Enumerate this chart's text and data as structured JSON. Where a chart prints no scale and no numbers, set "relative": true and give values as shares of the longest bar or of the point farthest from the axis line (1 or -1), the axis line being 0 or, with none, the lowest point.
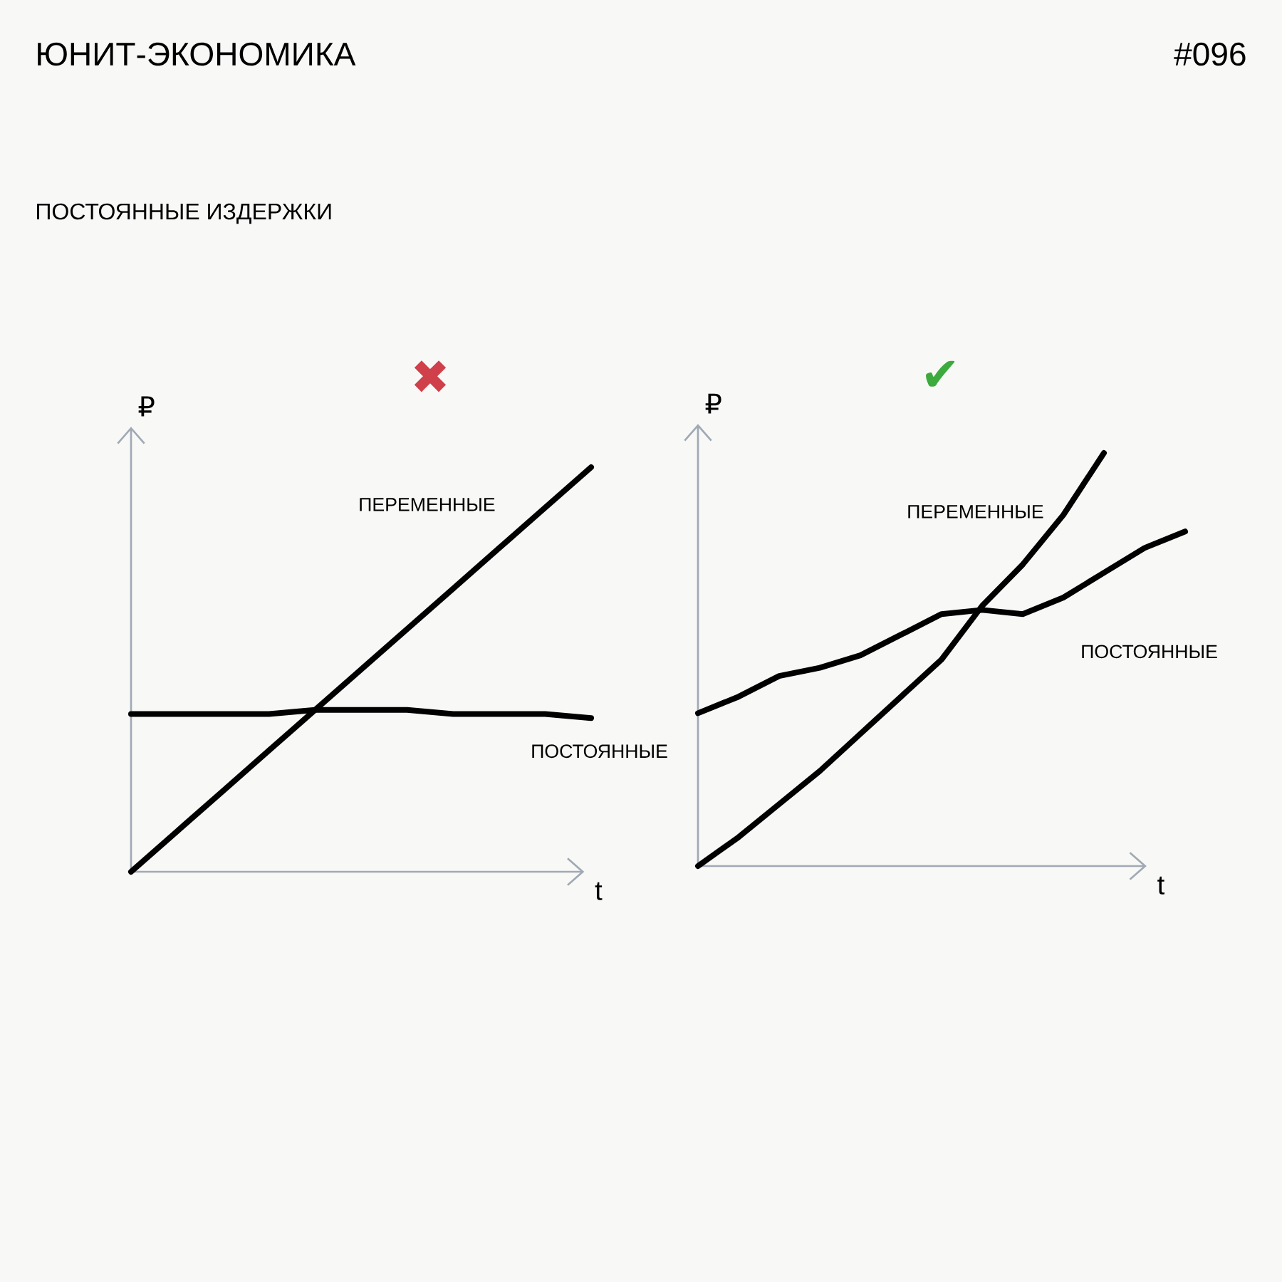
{
  "chart_data": [
    {
      "type": "line",
      "relative": true,
      "title": "✖",
      "xlabel": "t",
      "ylabel": "₽",
      "annotations": [
        "ЮНИТ-ЭКОНОМИКА",
        "#096",
        "ПОСТОЯННЫЕ ИЗДЕРЖКИ"
      ],
      "categories": [
        null,
        null,
        null,
        null,
        null,
        null,
        null,
        null,
        null,
        null,
        null
      ],
      "series": [
        {
          "name": "ПЕРЕМЕННЫЕ",
          "color": "#000000",
          "values": [
            0,
            0.1,
            0.2,
            0.3,
            0.4,
            0.5,
            0.6,
            0.7,
            0.8,
            0.9,
            1.0
          ]
        },
        {
          "name": "ПОСТОЯННЫЕ",
          "color": "#000000",
          "values": [
            0.39,
            0.39,
            0.39,
            0.39,
            0.4,
            0.4,
            0.4,
            0.39,
            0.39,
            0.39,
            0.38
          ]
        }
      ]
    },
    {
      "type": "line",
      "relative": true,
      "title": "✔",
      "xlabel": "t",
      "ylabel": "₽",
      "categories": [
        null,
        null,
        null,
        null,
        null,
        null,
        null,
        null,
        null,
        null,
        null,
        null,
        null
      ],
      "series": [
        {
          "name": "ПЕРЕМЕННЫЕ",
          "color": "#000000",
          "values": [
            0,
            0.07,
            0.15,
            0.23,
            0.32,
            0.41,
            0.5,
            0.63,
            0.73,
            0.85,
            1.0,
            null,
            null
          ]
        },
        {
          "name": "ПОСТОЯННЫЕ",
          "color": "#000000",
          "values": [
            0.37,
            0.41,
            0.46,
            0.48,
            0.51,
            0.56,
            0.61,
            0.62,
            0.61,
            0.65,
            0.71,
            0.77,
            0.81
          ]
        }
      ]
    }
  ]
}
